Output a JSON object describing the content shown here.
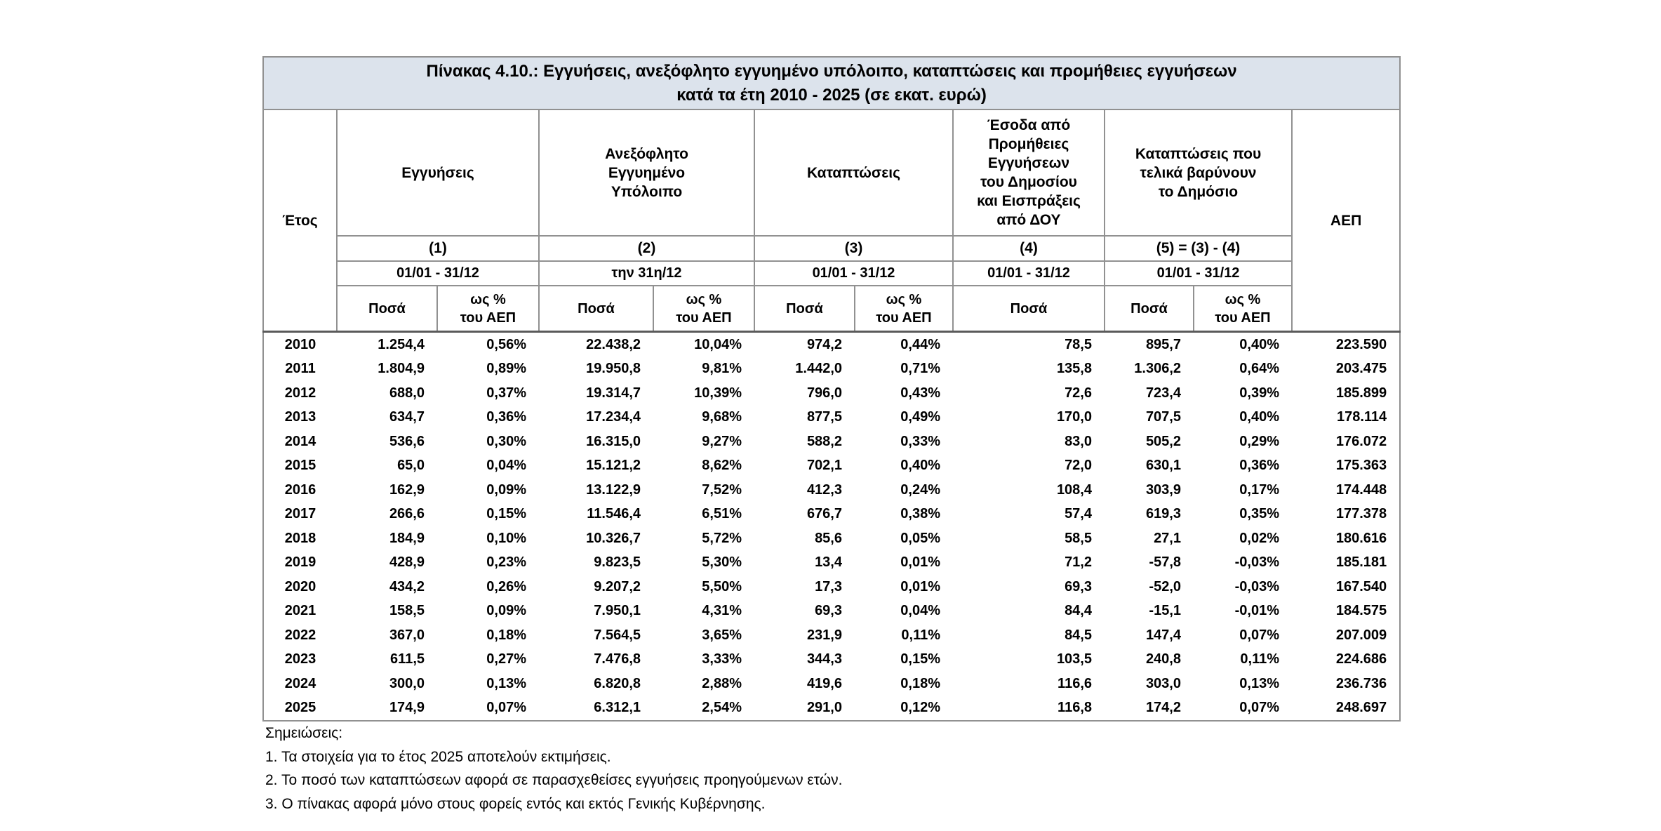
{
  "title": "Πίνακας 4.10.: Εγγυήσεις, ανεξόφλητο εγγυημένο υπόλοιπο, καταπτώσεις και προμήθειες εγγυήσεων\nκατά τα έτη 2010 - 2025 (σε εκατ. ευρώ)",
  "header": {
    "year": "Έτος",
    "gdp": "ΑΕΠ",
    "groups": [
      {
        "label": "Εγγυήσεις",
        "num": "(1)",
        "period": "01/01 - 31/12",
        "sub": [
          "Ποσά",
          "ως %\nτου ΑΕΠ"
        ]
      },
      {
        "label": "Ανεξόφλητο\nΕγγυημένο\nΥπόλοιπο",
        "num": "(2)",
        "period": "την 31η/12",
        "sub": [
          "Ποσά",
          "ως %\nτου ΑΕΠ"
        ]
      },
      {
        "label": "Καταπτώσεις",
        "num": "(3)",
        "period": "01/01 - 31/12",
        "sub": [
          "Ποσά",
          "ως %\nτου ΑΕΠ"
        ]
      },
      {
        "label": "Έσοδα από\nΠρομήθειες\nΕγγυήσεων\nτου Δημοσίου\nκαι Εισπράξεις\nαπό ΔΟΥ",
        "num": "(4)",
        "period": "01/01 - 31/12",
        "sub": [
          "Ποσά"
        ]
      },
      {
        "label": "Καταπτώσεις που\nτελικά βαρύνουν\nτο Δημόσιο",
        "num": "(5) = (3) - (4)",
        "period": "01/01 - 31/12",
        "sub": [
          "Ποσά",
          "ως %\nτου ΑΕΠ"
        ]
      }
    ]
  },
  "rows": [
    [
      "2010",
      "1.254,4",
      "0,56%",
      "22.438,2",
      "10,04%",
      "974,2",
      "0,44%",
      "78,5",
      "895,7",
      "0,40%",
      "223.590"
    ],
    [
      "2011",
      "1.804,9",
      "0,89%",
      "19.950,8",
      "9,81%",
      "1.442,0",
      "0,71%",
      "135,8",
      "1.306,2",
      "0,64%",
      "203.475"
    ],
    [
      "2012",
      "688,0",
      "0,37%",
      "19.314,7",
      "10,39%",
      "796,0",
      "0,43%",
      "72,6",
      "723,4",
      "0,39%",
      "185.899"
    ],
    [
      "2013",
      "634,7",
      "0,36%",
      "17.234,4",
      "9,68%",
      "877,5",
      "0,49%",
      "170,0",
      "707,5",
      "0,40%",
      "178.114"
    ],
    [
      "2014",
      "536,6",
      "0,30%",
      "16.315,0",
      "9,27%",
      "588,2",
      "0,33%",
      "83,0",
      "505,2",
      "0,29%",
      "176.072"
    ],
    [
      "2015",
      "65,0",
      "0,04%",
      "15.121,2",
      "8,62%",
      "702,1",
      "0,40%",
      "72,0",
      "630,1",
      "0,36%",
      "175.363"
    ],
    [
      "2016",
      "162,9",
      "0,09%",
      "13.122,9",
      "7,52%",
      "412,3",
      "0,24%",
      "108,4",
      "303,9",
      "0,17%",
      "174.448"
    ],
    [
      "2017",
      "266,6",
      "0,15%",
      "11.546,4",
      "6,51%",
      "676,7",
      "0,38%",
      "57,4",
      "619,3",
      "0,35%",
      "177.378"
    ],
    [
      "2018",
      "184,9",
      "0,10%",
      "10.326,7",
      "5,72%",
      "85,6",
      "0,05%",
      "58,5",
      "27,1",
      "0,02%",
      "180.616"
    ],
    [
      "2019",
      "428,9",
      "0,23%",
      "9.823,5",
      "5,30%",
      "13,4",
      "0,01%",
      "71,2",
      "-57,8",
      "-0,03%",
      "185.181"
    ],
    [
      "2020",
      "434,2",
      "0,26%",
      "9.207,2",
      "5,50%",
      "17,3",
      "0,01%",
      "69,3",
      "-52,0",
      "-0,03%",
      "167.540"
    ],
    [
      "2021",
      "158,5",
      "0,09%",
      "7.950,1",
      "4,31%",
      "69,3",
      "0,04%",
      "84,4",
      "-15,1",
      "-0,01%",
      "184.575"
    ],
    [
      "2022",
      "367,0",
      "0,18%",
      "7.564,5",
      "3,65%",
      "231,9",
      "0,11%",
      "84,5",
      "147,4",
      "0,07%",
      "207.009"
    ],
    [
      "2023",
      "611,5",
      "0,27%",
      "7.476,8",
      "3,33%",
      "344,3",
      "0,15%",
      "103,5",
      "240,8",
      "0,11%",
      "224.686"
    ],
    [
      "2024",
      "300,0",
      "0,13%",
      "6.820,8",
      "2,88%",
      "419,6",
      "0,18%",
      "116,6",
      "303,0",
      "0,13%",
      "236.736"
    ],
    [
      "2025",
      "174,9",
      "0,07%",
      "6.312,1",
      "2,54%",
      "291,0",
      "0,12%",
      "116,8",
      "174,2",
      "0,07%",
      "248.697"
    ]
  ],
  "notes": {
    "heading": "Σημειώσεις:",
    "items": [
      "1. Τα στοιχεία για το έτος 2025 αποτελούν εκτιμήσεις.",
      "2. Το ποσό των καταπτώσεων αφορά σε παρασχεθείσες εγγυήσεις προηγούμενων ετών.",
      "3. Ο πίνακας αφορά μόνο στους φορείς εντός και εκτός Γενικής Κυβέρνησης."
    ]
  },
  "colors": {
    "title_bg": "#dce3ec",
    "border": "#919191",
    "header_separator": "#5a5a5a",
    "text": "#000000"
  }
}
